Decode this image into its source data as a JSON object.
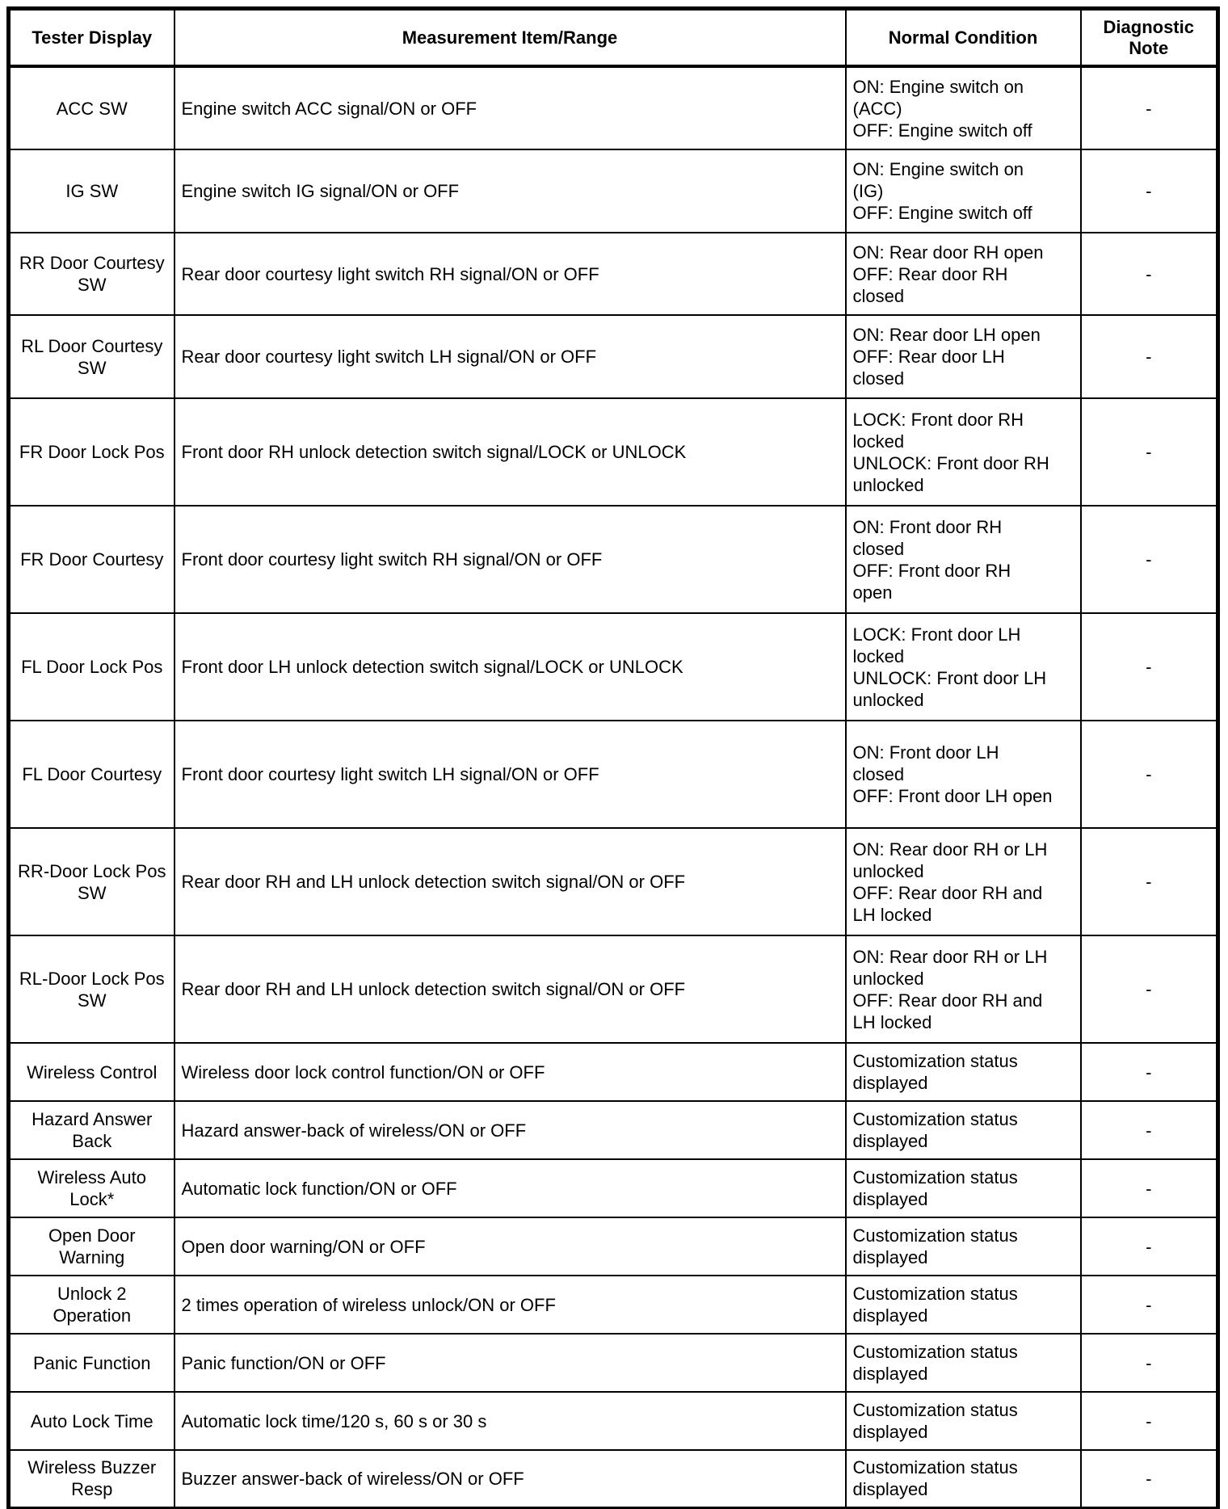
{
  "table": {
    "headers": [
      "Tester Display",
      "Measurement Item/Range",
      "Normal Condition",
      "Diagnostic Note"
    ],
    "rows": [
      {
        "display": "ACC SW",
        "item": "Engine switch ACC signal/ON or OFF",
        "conditions": [
          "ON: Engine switch on (ACC)",
          "OFF: Engine switch off"
        ],
        "note": "-"
      },
      {
        "display": "IG SW",
        "item": "Engine switch IG signal/ON or OFF",
        "conditions": [
          "ON: Engine switch on (IG)",
          "OFF: Engine switch off"
        ],
        "note": "-"
      },
      {
        "display": "RR Door Courtesy SW",
        "item": "Rear door courtesy light switch RH signal/ON or OFF",
        "conditions": [
          "ON: Rear door RH open",
          "OFF: Rear door RH closed"
        ],
        "note": "-"
      },
      {
        "display": "RL Door Courtesy SW",
        "item": "Rear door courtesy light switch LH signal/ON or OFF",
        "conditions": [
          "ON: Rear door LH open",
          "OFF: Rear door LH closed"
        ],
        "note": "-"
      },
      {
        "display": "FR Door Lock Pos",
        "item": "Front door RH unlock detection switch signal/LOCK or UNLOCK",
        "conditions": [
          "LOCK: Front door RH locked",
          "UNLOCK: Front door RH unlocked"
        ],
        "note": "-"
      },
      {
        "display": "FR Door Courtesy",
        "item": "Front door courtesy light switch RH signal/ON or OFF",
        "conditions": [
          "ON: Front door RH closed",
          "OFF: Front door RH open"
        ],
        "note": "-"
      },
      {
        "display": "FL Door Lock Pos",
        "item": "Front door LH unlock detection switch signal/LOCK or UNLOCK",
        "conditions": [
          "LOCK: Front door LH locked",
          "UNLOCK: Front door LH unlocked"
        ],
        "note": "-"
      },
      {
        "display": "FL Door Courtesy",
        "item": "Front door courtesy light switch LH signal/ON or OFF",
        "conditions": [
          "ON: Front door LH closed",
          "OFF: Front door LH open"
        ],
        "note": "-"
      },
      {
        "display": "RR-Door Lock Pos SW",
        "item": "Rear door RH and LH unlock detection switch signal/ON or OFF",
        "conditions": [
          "ON: Rear door RH or LH unlocked",
          "OFF: Rear door RH and LH locked"
        ],
        "note": "-"
      },
      {
        "display": "RL-Door Lock Pos SW",
        "item": "Rear door RH and LH unlock detection switch signal/ON or OFF",
        "conditions": [
          "ON: Rear door RH or LH unlocked",
          "OFF: Rear door RH and LH locked"
        ],
        "note": "-"
      },
      {
        "display": "Wireless Control",
        "item": "Wireless door lock control function/ON or OFF",
        "conditions": [
          "Customization status displayed"
        ],
        "note": "-"
      },
      {
        "display": "Hazard Answer Back",
        "item": "Hazard answer-back of wireless/ON or OFF",
        "conditions": [
          "Customization status displayed"
        ],
        "note": "-"
      },
      {
        "display": "Wireless Auto Lock*",
        "item": "Automatic lock function/ON or OFF",
        "conditions": [
          "Customization status displayed"
        ],
        "note": "-"
      },
      {
        "display": "Open Door Warning",
        "item": "Open door warning/ON or OFF",
        "conditions": [
          "Customization status displayed"
        ],
        "note": "-"
      },
      {
        "display": "Unlock 2 Operation",
        "item": "2 times operation of wireless unlock/ON or OFF",
        "conditions": [
          "Customization status displayed"
        ],
        "note": "-"
      },
      {
        "display": "Panic Function",
        "item": "Panic function/ON or OFF",
        "conditions": [
          "Customization status displayed"
        ],
        "note": "-"
      },
      {
        "display": "Auto Lock Time",
        "item": "Automatic lock time/120 s, 60 s or 30 s",
        "conditions": [
          "Customization status displayed"
        ],
        "note": "-"
      },
      {
        "display": "Wireless Buzzer Resp",
        "item": "Buzzer answer-back of wireless/ON or OFF",
        "conditions": [
          "Customization status displayed"
        ],
        "note": "-"
      }
    ]
  }
}
